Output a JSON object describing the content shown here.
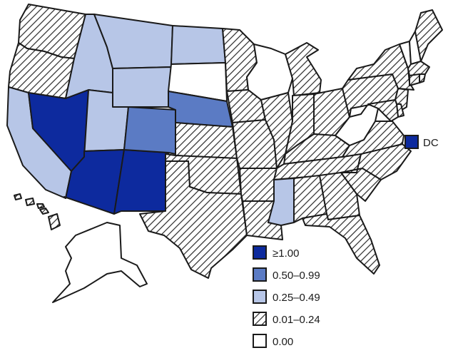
{
  "colors": {
    "c1": "#0d2a9e",
    "c2": "#5b7bc4",
    "c3": "#b7c6e7",
    "c5": "#ffffff",
    "outline": "#1a1a1a",
    "hatch": "#2a2a2a"
  },
  "legend": {
    "items": [
      {
        "label": "≥1.00",
        "class": "c1"
      },
      {
        "label": "0.50–0.99",
        "class": "c2"
      },
      {
        "label": "0.25–0.49",
        "class": "c3"
      },
      {
        "label": "0.01–0.24",
        "class": "c4"
      },
      {
        "label": "0.00",
        "class": "c5"
      }
    ]
  },
  "dc": {
    "label": "DC",
    "class": "c1"
  },
  "states": {
    "WA": "c4",
    "OR": "c4",
    "CA": "c3",
    "NV": "c1",
    "ID": "c3",
    "MT": "c3",
    "WY": "c3",
    "UT": "c3",
    "AZ": "c1",
    "NM": "c1",
    "CO": "c2",
    "ND": "c3",
    "SD": "c5",
    "NE": "c2",
    "KS": "c4",
    "OK": "c4",
    "TX": "c4",
    "MN": "c4",
    "IA": "c4",
    "MO": "c4",
    "AR": "c4",
    "LA": "c4",
    "WI": "c5",
    "IL": "c4",
    "MI": "c4",
    "IN": "c4",
    "OH": "c4",
    "KY": "c4",
    "TN": "c4",
    "MS": "c3",
    "AL": "c4",
    "GA": "c4",
    "FL": "c4",
    "SC": "c4",
    "NC": "c4",
    "VA": "c4",
    "WV": "c5",
    "PA": "c4",
    "NY": "c4",
    "VT": "c5",
    "NH": "c5",
    "ME": "c4",
    "MA": "c4",
    "CT": "c4",
    "RI": "c4",
    "NJ": "c4",
    "DE": "c4",
    "MD": "c4",
    "AK": "c5",
    "HI": "c4"
  }
}
